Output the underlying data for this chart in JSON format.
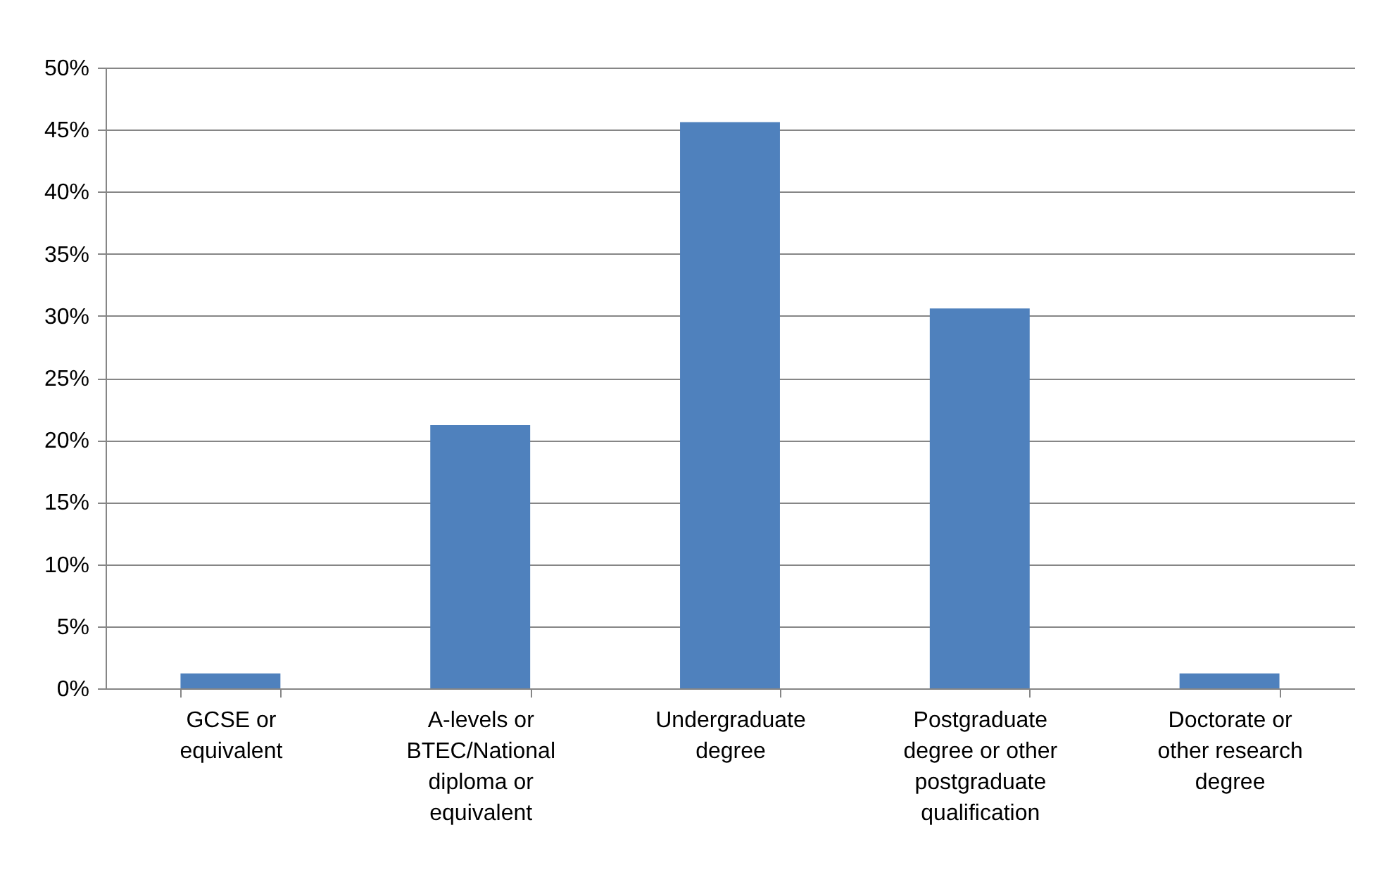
{
  "chart_data": {
    "type": "bar",
    "categories": [
      "GCSE or equivalent",
      "A-levels or BTEC/National diploma or equivalent",
      "Undergraduate degree",
      "Postgraduate degree or other postgraduate qualification",
      "Doctorate or other research degree"
    ],
    "values": [
      1.2,
      21.2,
      45.6,
      30.6,
      1.2
    ],
    "color": "#4f81bd",
    "ylim": [
      0,
      50
    ],
    "yticks": [
      {
        "value": 0,
        "label": "0%"
      },
      {
        "value": 5,
        "label": "5%"
      },
      {
        "value": 10,
        "label": "10%"
      },
      {
        "value": 15,
        "label": "15%"
      },
      {
        "value": 20,
        "label": "20%"
      },
      {
        "value": 25,
        "label": "25%"
      },
      {
        "value": 30,
        "label": "30%"
      },
      {
        "value": 35,
        "label": "35%"
      },
      {
        "value": 40,
        "label": "40%"
      },
      {
        "value": 45,
        "label": "45%"
      },
      {
        "value": 50,
        "label": "50%"
      }
    ],
    "grid": "y"
  }
}
